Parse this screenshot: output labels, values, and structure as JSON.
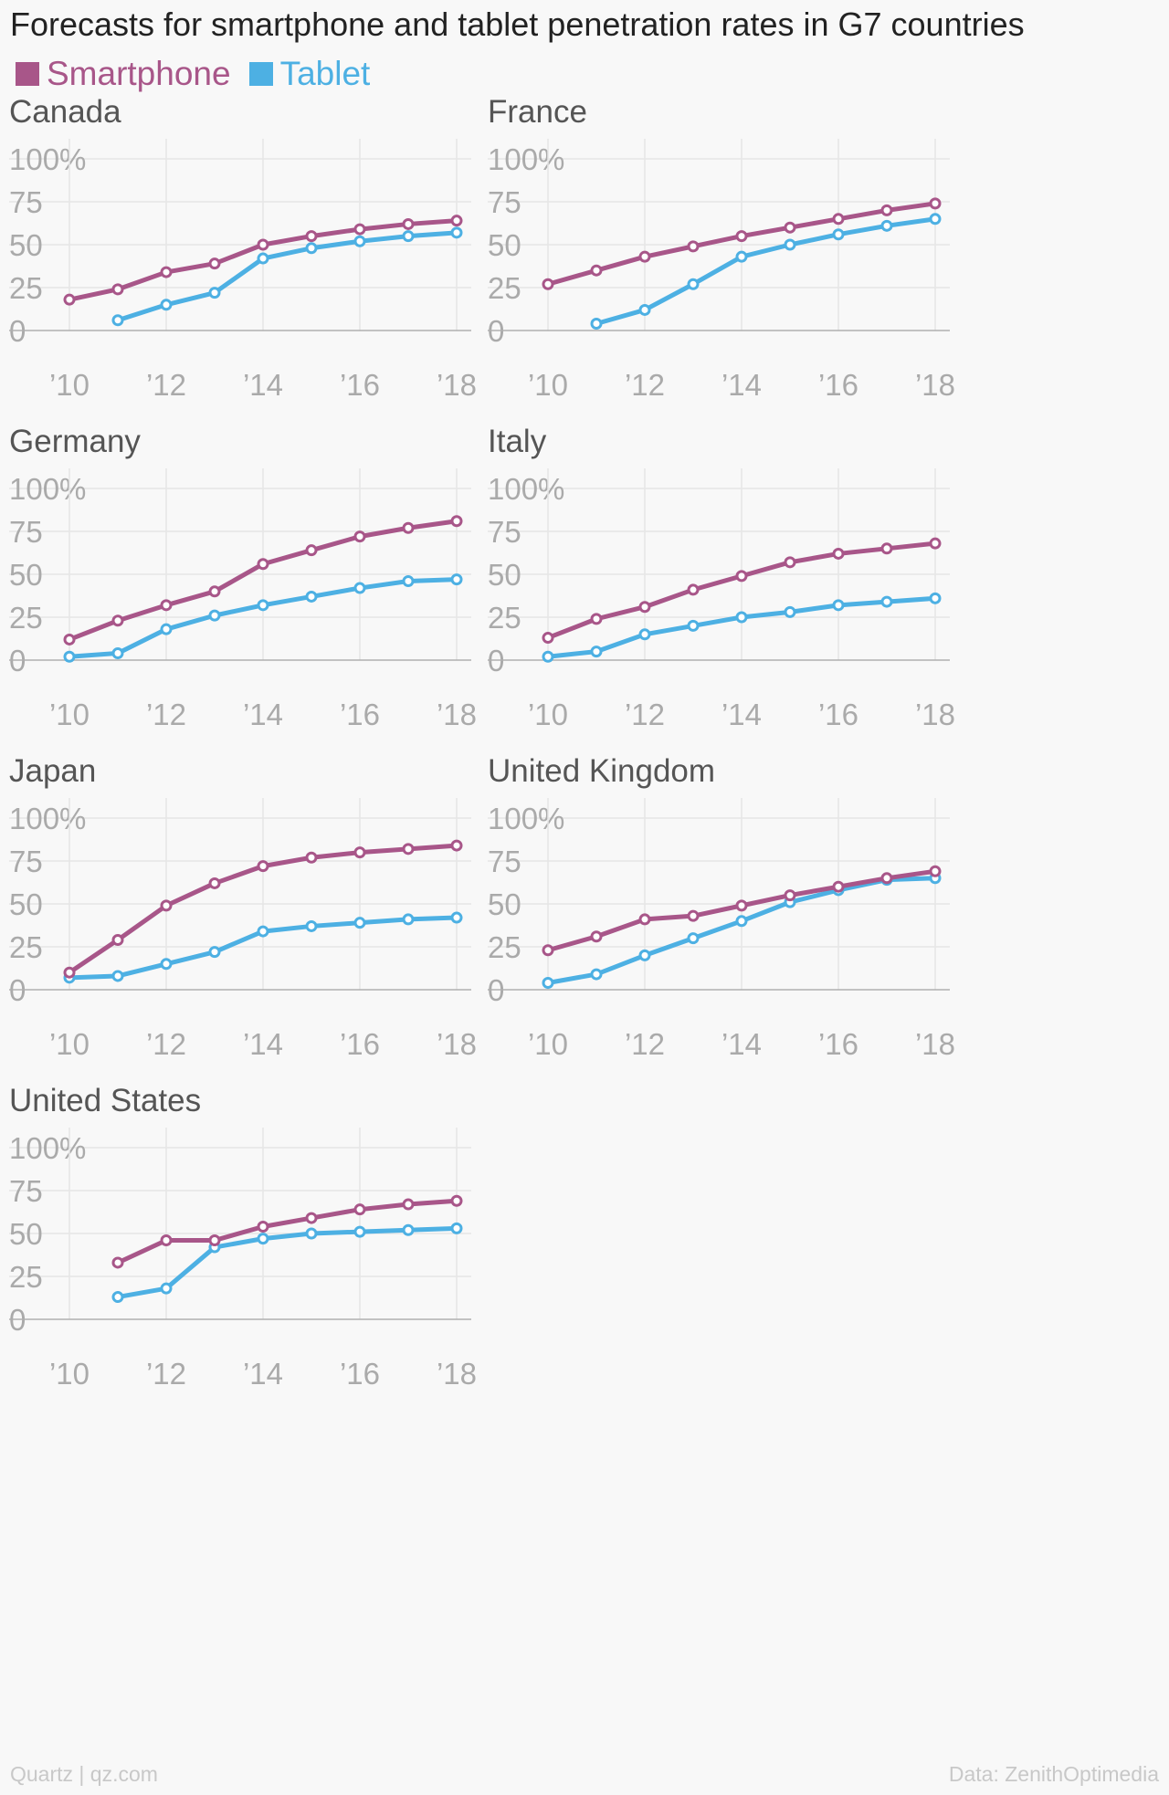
{
  "title": "Forecasts for smartphone and tablet penetration rates in G7 countries",
  "legend": {
    "smartphone": {
      "label": "Smartphone",
      "color": "#a85689"
    },
    "tablet": {
      "label": "Tablet",
      "color": "#4db0e3"
    }
  },
  "colors": {
    "axis": "#b0b0b0",
    "grid": "#e6e6e6",
    "tick_label": "#aaaaaa",
    "panel_title": "#555555",
    "marker_fill": "#ffffff"
  },
  "footer": {
    "source": "Quartz | qz.com",
    "credit": "Data: ZenithOptimedia"
  },
  "chart_data": {
    "type": "line",
    "layout": "small-multiples",
    "x": [
      2010,
      2011,
      2012,
      2013,
      2014,
      2015,
      2016,
      2017,
      2018
    ],
    "x_ticks": [
      2010,
      2012,
      2014,
      2016,
      2018
    ],
    "x_tick_labels": [
      "’10",
      "’12",
      "’14",
      "’16",
      "’18"
    ],
    "y_ticks": [
      0,
      25,
      50,
      75,
      100
    ],
    "y_tick_labels": [
      "0",
      "25",
      "50",
      "75",
      "100%"
    ],
    "ylim": [
      0,
      100
    ],
    "grid": true,
    "panels": [
      {
        "country": "Canada",
        "series": [
          {
            "name": "Smartphone",
            "values": [
              18,
              24,
              34,
              39,
              50,
              55,
              59,
              62,
              64
            ]
          },
          {
            "name": "Tablet",
            "values": [
              null,
              6,
              15,
              22,
              42,
              48,
              52,
              55,
              57
            ]
          }
        ]
      },
      {
        "country": "France",
        "series": [
          {
            "name": "Smartphone",
            "values": [
              27,
              35,
              43,
              49,
              55,
              60,
              65,
              70,
              74
            ]
          },
          {
            "name": "Tablet",
            "values": [
              null,
              4,
              12,
              27,
              43,
              50,
              56,
              61,
              65
            ]
          }
        ]
      },
      {
        "country": "Germany",
        "series": [
          {
            "name": "Smartphone",
            "values": [
              12,
              23,
              32,
              40,
              56,
              64,
              72,
              77,
              81
            ]
          },
          {
            "name": "Tablet",
            "values": [
              2,
              4,
              18,
              26,
              32,
              37,
              42,
              46,
              47
            ]
          }
        ]
      },
      {
        "country": "Italy",
        "series": [
          {
            "name": "Smartphone",
            "values": [
              13,
              24,
              31,
              41,
              49,
              57,
              62,
              65,
              68
            ]
          },
          {
            "name": "Tablet",
            "values": [
              2,
              5,
              15,
              20,
              25,
              28,
              32,
              34,
              36
            ]
          }
        ]
      },
      {
        "country": "Japan",
        "series": [
          {
            "name": "Smartphone",
            "values": [
              10,
              29,
              49,
              62,
              72,
              77,
              80,
              82,
              84
            ]
          },
          {
            "name": "Tablet",
            "values": [
              7,
              8,
              15,
              22,
              34,
              37,
              39,
              41,
              42
            ]
          }
        ]
      },
      {
        "country": "United Kingdom",
        "series": [
          {
            "name": "Smartphone",
            "values": [
              23,
              31,
              41,
              43,
              49,
              55,
              60,
              65,
              69
            ]
          },
          {
            "name": "Tablet",
            "values": [
              4,
              9,
              20,
              30,
              40,
              51,
              58,
              64,
              65
            ]
          }
        ]
      },
      {
        "country": "United States",
        "series": [
          {
            "name": "Smartphone",
            "values": [
              null,
              33,
              46,
              46,
              54,
              59,
              64,
              67,
              69
            ]
          },
          {
            "name": "Tablet",
            "values": [
              null,
              13,
              18,
              42,
              47,
              50,
              51,
              52,
              53
            ]
          }
        ]
      }
    ]
  }
}
